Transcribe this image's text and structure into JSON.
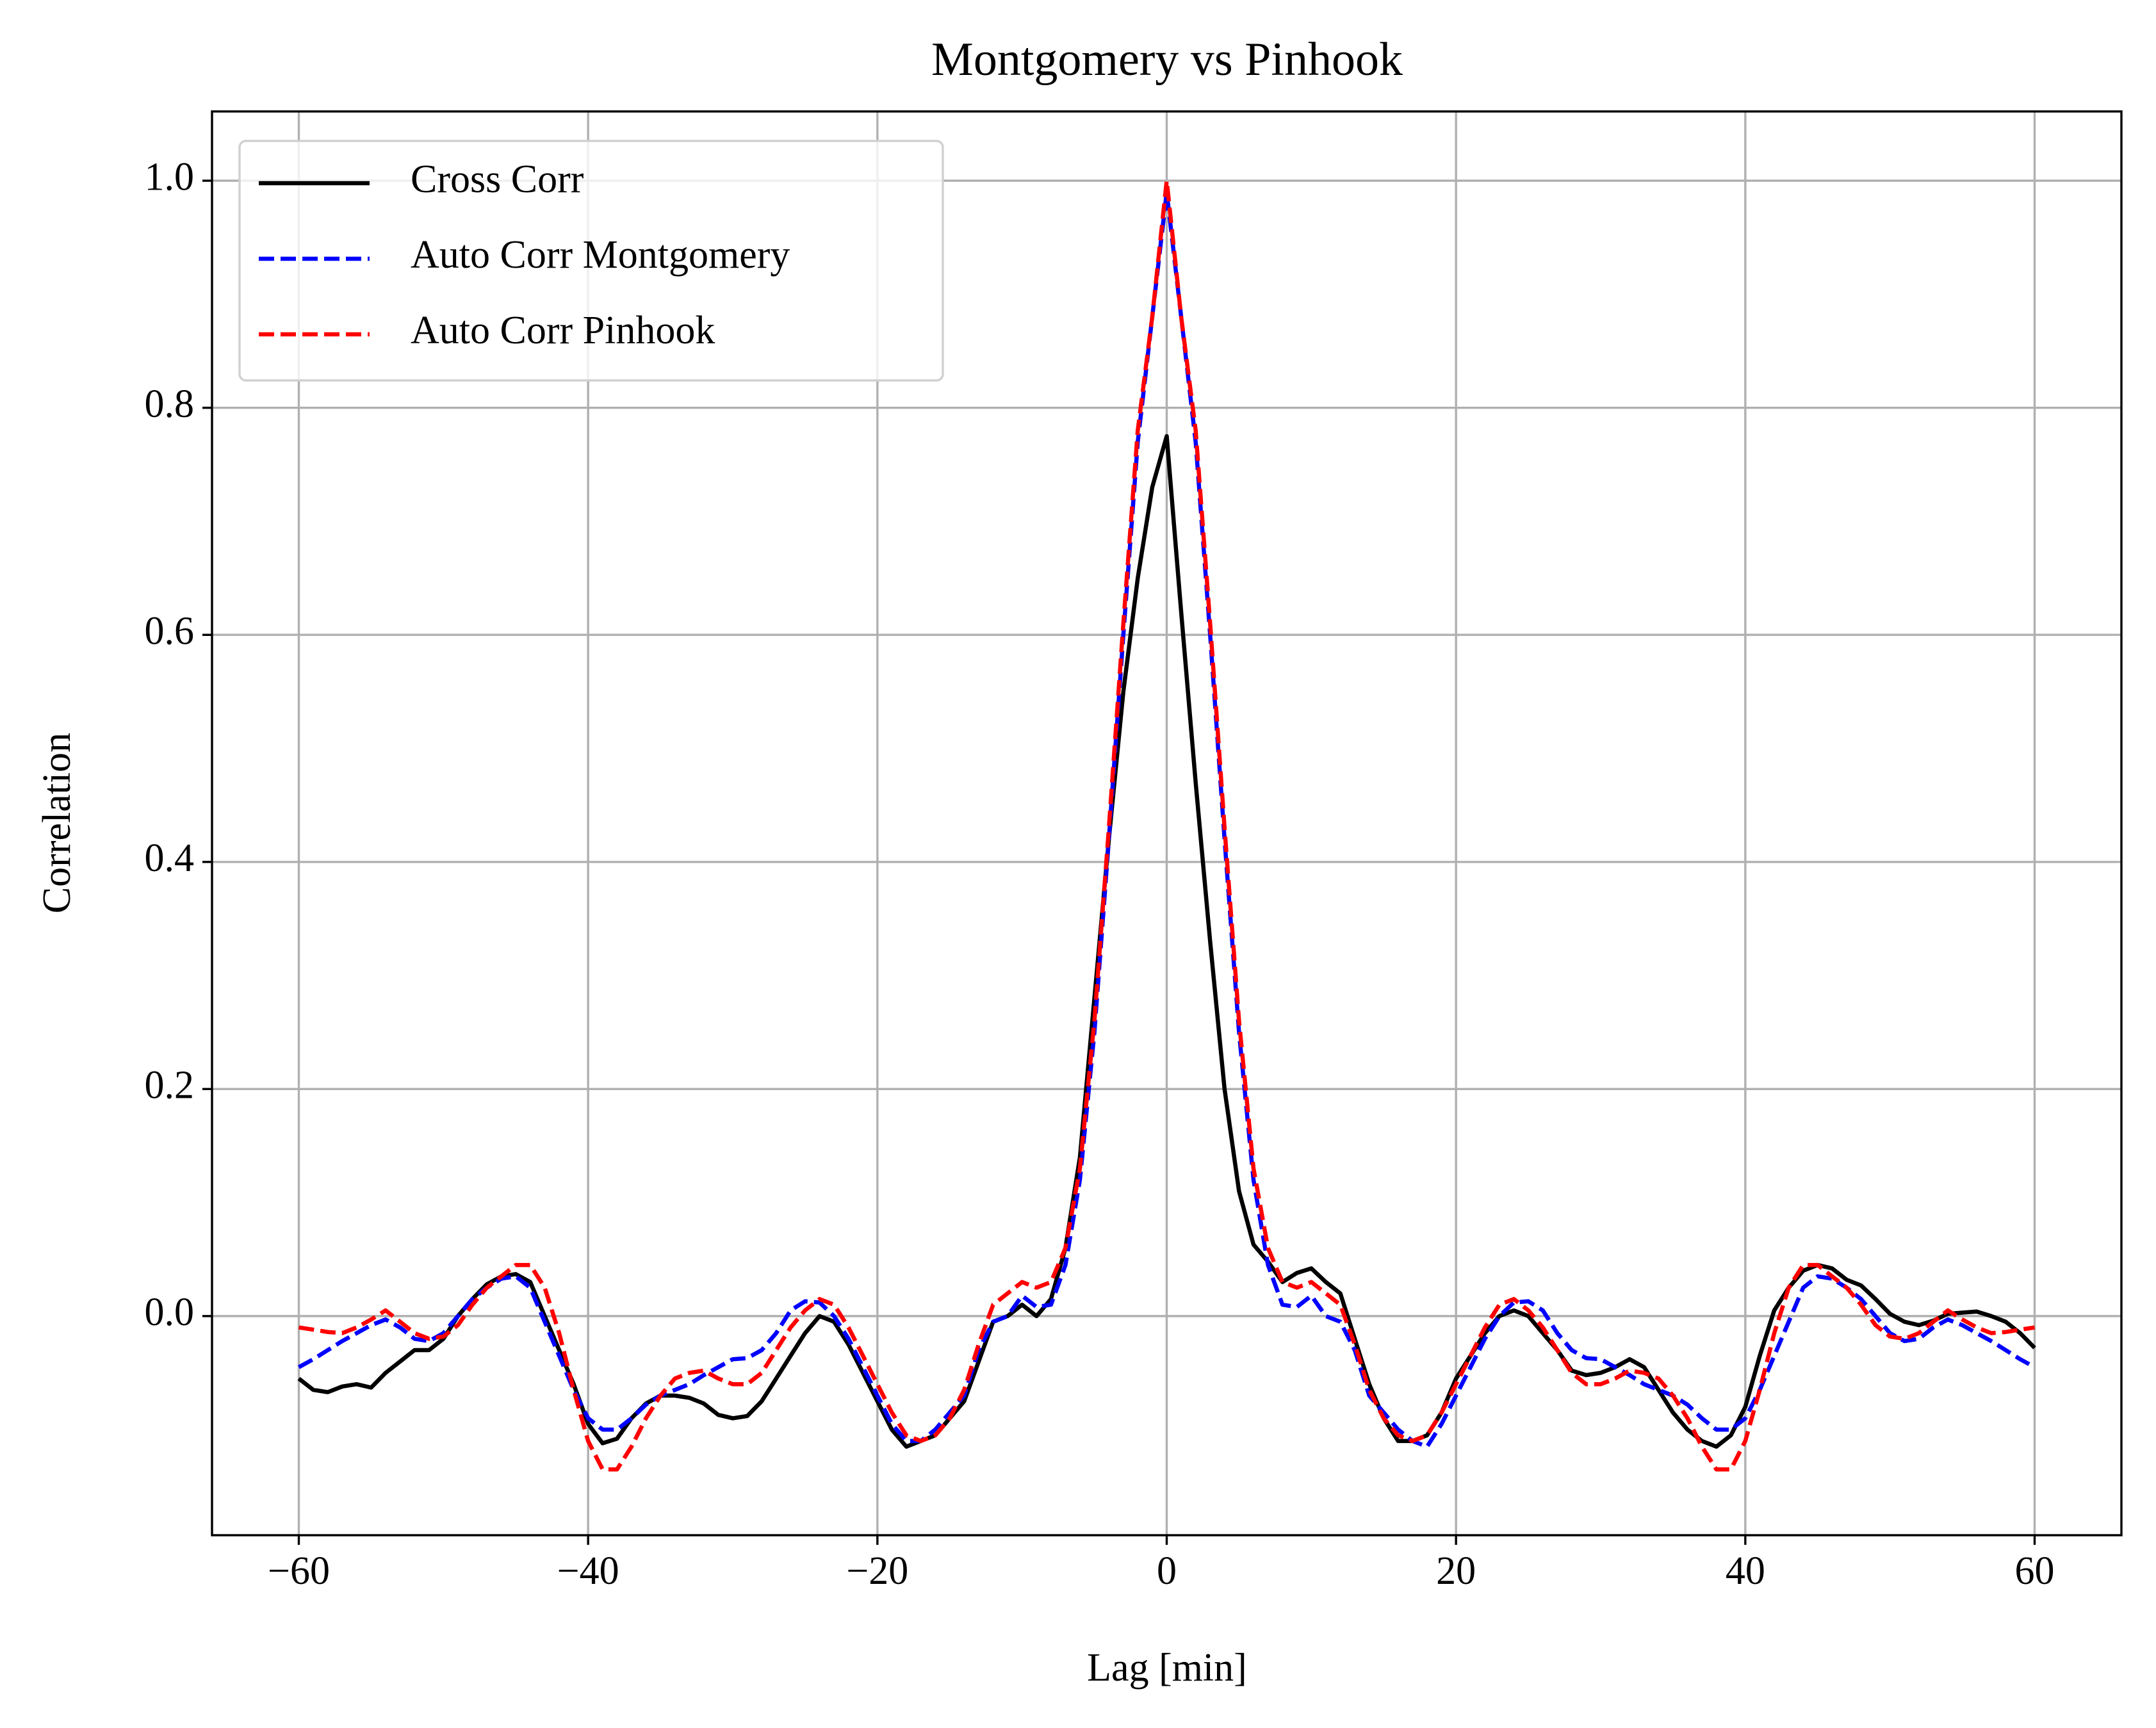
{
  "chart_data": {
    "type": "line",
    "title": "Montgomery vs Pinhook",
    "xlabel": "Lag [min]",
    "ylabel": "Correlation",
    "x": [
      -60,
      -59,
      -58,
      -57,
      -56,
      -55,
      -54,
      -53,
      -52,
      -51,
      -50,
      -49,
      -48,
      -47,
      -46,
      -45,
      -44,
      -43,
      -42,
      -41,
      -40,
      -39,
      -38,
      -37,
      -36,
      -35,
      -34,
      -33,
      -32,
      -31,
      -30,
      -29,
      -28,
      -27,
      -26,
      -25,
      -24,
      -23,
      -22,
      -21,
      -20,
      -19,
      -18,
      -17,
      -16,
      -15,
      -14,
      -13,
      -12,
      -11,
      -10,
      -9,
      -8,
      -7,
      -6,
      -5,
      -4,
      -3,
      -2,
      -1,
      0,
      1,
      2,
      3,
      4,
      5,
      6,
      7,
      8,
      9,
      10,
      11,
      12,
      13,
      14,
      15,
      16,
      17,
      18,
      19,
      20,
      21,
      22,
      23,
      24,
      25,
      26,
      27,
      28,
      29,
      30,
      31,
      32,
      33,
      34,
      35,
      36,
      37,
      38,
      39,
      40,
      41,
      42,
      43,
      44,
      45,
      46,
      47,
      48,
      49,
      50,
      51,
      52,
      53,
      54,
      55,
      56,
      57,
      58,
      59,
      60
    ],
    "series": [
      {
        "name": "Cross Corr",
        "color": "#000000",
        "dash": "solid",
        "values": [
          -0.055,
          -0.065,
          -0.067,
          -0.062,
          -0.06,
          -0.063,
          -0.05,
          -0.04,
          -0.03,
          -0.03,
          -0.02,
          0.0,
          0.015,
          0.028,
          0.035,
          0.037,
          0.03,
          0.0,
          -0.03,
          -0.06,
          -0.095,
          -0.112,
          -0.108,
          -0.09,
          -0.077,
          -0.07,
          -0.07,
          -0.072,
          -0.077,
          -0.087,
          -0.09,
          -0.088,
          -0.075,
          -0.055,
          -0.035,
          -0.015,
          0.0,
          -0.005,
          -0.025,
          -0.05,
          -0.075,
          -0.1,
          -0.115,
          -0.11,
          -0.105,
          -0.09,
          -0.075,
          -0.04,
          -0.005,
          0.0,
          0.01,
          0.0,
          0.015,
          0.06,
          0.14,
          0.28,
          0.42,
          0.55,
          0.65,
          0.73,
          0.775,
          0.62,
          0.47,
          0.33,
          0.2,
          0.11,
          0.063,
          0.048,
          0.03,
          0.038,
          0.042,
          0.03,
          0.02,
          -0.02,
          -0.06,
          -0.09,
          -0.11,
          -0.11,
          -0.105,
          -0.085,
          -0.055,
          -0.035,
          -0.015,
          0.0,
          0.005,
          0.0,
          -0.015,
          -0.03,
          -0.048,
          -0.052,
          -0.05,
          -0.045,
          -0.038,
          -0.045,
          -0.065,
          -0.085,
          -0.1,
          -0.11,
          -0.115,
          -0.105,
          -0.08,
          -0.035,
          0.005,
          0.025,
          0.04,
          0.045,
          0.042,
          0.032,
          0.027,
          0.015,
          0.002,
          -0.005,
          -0.008,
          -0.004,
          0.002,
          0.003,
          0.004,
          0.0,
          -0.005,
          -0.015,
          -0.028
        ]
      },
      {
        "name": "Auto Corr Montgomery",
        "color": "#0000ff",
        "dash": "dashed",
        "values": [
          -0.045,
          -0.038,
          -0.03,
          -0.022,
          -0.015,
          -0.008,
          -0.003,
          -0.01,
          -0.02,
          -0.022,
          -0.015,
          0.0,
          0.015,
          0.025,
          0.033,
          0.035,
          0.025,
          -0.005,
          -0.035,
          -0.065,
          -0.09,
          -0.1,
          -0.1,
          -0.09,
          -0.078,
          -0.07,
          -0.065,
          -0.06,
          -0.052,
          -0.045,
          -0.038,
          -0.037,
          -0.03,
          -0.015,
          0.005,
          0.013,
          0.012,
          0.0,
          -0.02,
          -0.045,
          -0.07,
          -0.095,
          -0.11,
          -0.11,
          -0.1,
          -0.085,
          -0.07,
          -0.03,
          -0.005,
          0.0,
          0.018,
          0.008,
          0.01,
          0.045,
          0.12,
          0.25,
          0.42,
          0.6,
          0.77,
          0.88,
          0.99,
          0.88,
          0.77,
          0.6,
          0.42,
          0.25,
          0.12,
          0.045,
          0.01,
          0.008,
          0.018,
          0.0,
          -0.005,
          -0.03,
          -0.07,
          -0.085,
          -0.1,
          -0.11,
          -0.115,
          -0.095,
          -0.07,
          -0.045,
          -0.02,
          0.0,
          0.012,
          0.013,
          0.005,
          -0.015,
          -0.03,
          -0.037,
          -0.038,
          -0.045,
          -0.052,
          -0.06,
          -0.065,
          -0.07,
          -0.078,
          -0.09,
          -0.1,
          -0.1,
          -0.09,
          -0.065,
          -0.035,
          -0.005,
          0.025,
          0.035,
          0.033,
          0.025,
          0.015,
          0.0,
          -0.015,
          -0.022,
          -0.02,
          -0.01,
          -0.003,
          -0.008,
          -0.015,
          -0.022,
          -0.03,
          -0.038,
          -0.045
        ]
      },
      {
        "name": "Auto Corr Pinhook",
        "color": "#ff0000",
        "dash": "dashed",
        "values": [
          -0.01,
          -0.012,
          -0.014,
          -0.015,
          -0.01,
          -0.003,
          0.005,
          -0.005,
          -0.015,
          -0.02,
          -0.018,
          -0.008,
          0.01,
          0.025,
          0.035,
          0.045,
          0.045,
          0.025,
          -0.015,
          -0.065,
          -0.11,
          -0.135,
          -0.135,
          -0.115,
          -0.09,
          -0.07,
          -0.055,
          -0.05,
          -0.048,
          -0.055,
          -0.06,
          -0.06,
          -0.05,
          -0.03,
          -0.01,
          0.005,
          0.015,
          0.01,
          -0.01,
          -0.035,
          -0.06,
          -0.085,
          -0.105,
          -0.11,
          -0.105,
          -0.09,
          -0.065,
          -0.025,
          0.01,
          0.02,
          0.03,
          0.025,
          0.03,
          0.06,
          0.13,
          0.26,
          0.43,
          0.61,
          0.78,
          0.88,
          1.0,
          0.88,
          0.78,
          0.61,
          0.43,
          0.26,
          0.13,
          0.06,
          0.03,
          0.025,
          0.03,
          0.02,
          0.01,
          -0.025,
          -0.065,
          -0.09,
          -0.105,
          -0.11,
          -0.105,
          -0.085,
          -0.06,
          -0.035,
          -0.01,
          0.01,
          0.015,
          0.005,
          -0.01,
          -0.03,
          -0.05,
          -0.06,
          -0.06,
          -0.055,
          -0.048,
          -0.05,
          -0.055,
          -0.07,
          -0.09,
          -0.115,
          -0.135,
          -0.135,
          -0.11,
          -0.065,
          -0.015,
          0.025,
          0.045,
          0.045,
          0.035,
          0.025,
          0.01,
          -0.008,
          -0.018,
          -0.02,
          -0.015,
          -0.005,
          0.005,
          -0.003,
          -0.01,
          -0.015,
          -0.014,
          -0.012,
          -0.01
        ]
      }
    ],
    "xlim": [
      -66,
      66
    ],
    "ylim": [
      -0.193,
      1.061
    ],
    "xticks": [
      {
        "value": -60,
        "label": "−60"
      },
      {
        "value": -40,
        "label": "−40"
      },
      {
        "value": -20,
        "label": "−20"
      },
      0,
      20,
      40,
      60
    ],
    "yticks": [
      {
        "value": 0,
        "label": "0.0"
      },
      0.2,
      0.4,
      0.6,
      0.8,
      {
        "value": 1,
        "label": "1.0"
      }
    ],
    "grid": true,
    "legend": "upper left"
  }
}
